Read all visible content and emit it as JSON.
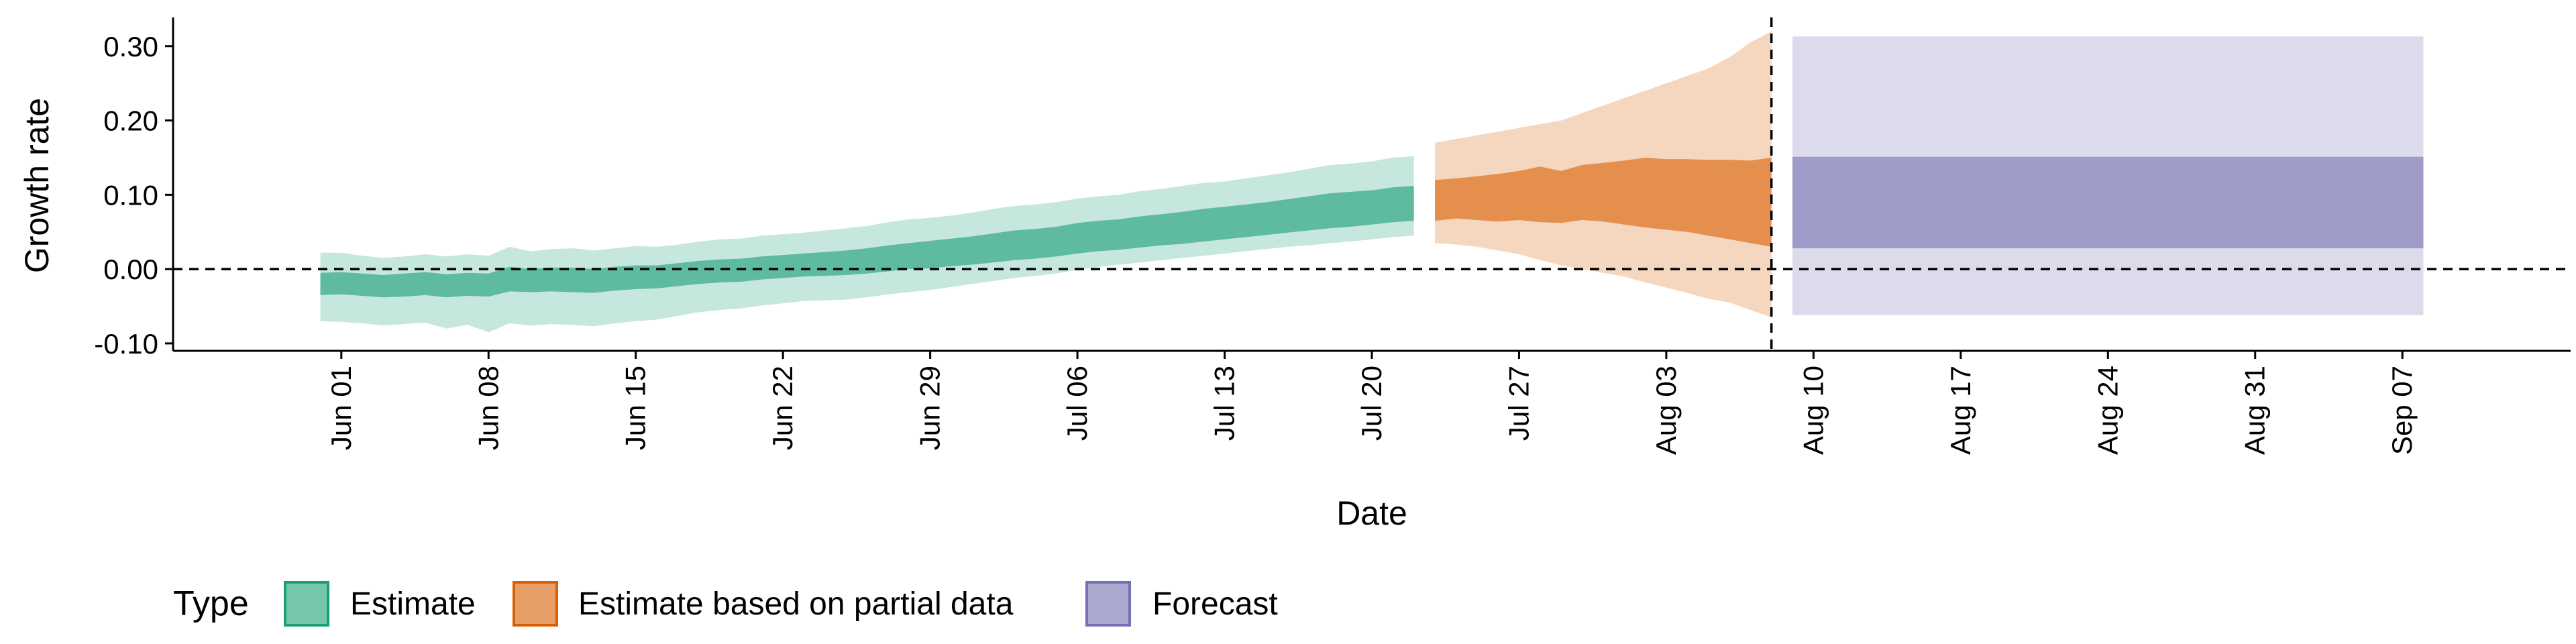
{
  "chart_data": {
    "type": "area",
    "title": "",
    "xlabel": "Date",
    "ylabel": "Growth rate",
    "x_type": "date",
    "xlim": [
      "2021-05-24",
      "2021-09-15"
    ],
    "ylim": [
      -0.11,
      0.335
    ],
    "yticks": [
      -0.1,
      0.0,
      0.1,
      0.2,
      0.3
    ],
    "ytick_labels": [
      "-0.10",
      "0.00",
      "0.10",
      "0.20",
      "0.30"
    ],
    "xticks": [
      {
        "date": "2021-06-01",
        "label": "Jun 01"
      },
      {
        "date": "2021-06-08",
        "label": "Jun 08"
      },
      {
        "date": "2021-06-15",
        "label": "Jun 15"
      },
      {
        "date": "2021-06-22",
        "label": "Jun 22"
      },
      {
        "date": "2021-06-29",
        "label": "Jun 29"
      },
      {
        "date": "2021-07-06",
        "label": "Jul 06"
      },
      {
        "date": "2021-07-13",
        "label": "Jul 13"
      },
      {
        "date": "2021-07-20",
        "label": "Jul 20"
      },
      {
        "date": "2021-07-27",
        "label": "Jul 27"
      },
      {
        "date": "2021-08-03",
        "label": "Aug 03"
      },
      {
        "date": "2021-08-10",
        "label": "Aug 10"
      },
      {
        "date": "2021-08-17",
        "label": "Aug 17"
      },
      {
        "date": "2021-08-24",
        "label": "Aug 24"
      },
      {
        "date": "2021-08-31",
        "label": "Aug 31"
      },
      {
        "date": "2021-09-07",
        "label": "Sep 07"
      }
    ],
    "reference_lines": [
      {
        "axis": "y",
        "value": 0.0,
        "style": "dashed"
      },
      {
        "axis": "x",
        "value": "2021-08-08",
        "style": "dashed"
      }
    ],
    "legend": {
      "title": "Type",
      "position": "bottom-left"
    },
    "series": [
      {
        "name": "Estimate",
        "color": "#1b9e77",
        "dates": [
          "2021-05-31",
          "2021-06-01",
          "2021-06-02",
          "2021-06-03",
          "2021-06-04",
          "2021-06-05",
          "2021-06-06",
          "2021-06-07",
          "2021-06-08",
          "2021-06-09",
          "2021-06-10",
          "2021-06-11",
          "2021-06-12",
          "2021-06-13",
          "2021-06-14",
          "2021-06-15",
          "2021-06-16",
          "2021-06-17",
          "2021-06-18",
          "2021-06-19",
          "2021-06-20",
          "2021-06-21",
          "2021-06-22",
          "2021-06-23",
          "2021-06-24",
          "2021-06-25",
          "2021-06-26",
          "2021-06-27",
          "2021-06-28",
          "2021-06-29",
          "2021-06-30",
          "2021-07-01",
          "2021-07-02",
          "2021-07-03",
          "2021-07-04",
          "2021-07-05",
          "2021-07-06",
          "2021-07-07",
          "2021-07-08",
          "2021-07-09",
          "2021-07-10",
          "2021-07-11",
          "2021-07-12",
          "2021-07-13",
          "2021-07-14",
          "2021-07-15",
          "2021-07-16",
          "2021-07-17",
          "2021-07-18",
          "2021-07-19",
          "2021-07-20",
          "2021-07-21",
          "2021-07-22"
        ],
        "upper_90": [
          0.022,
          0.022,
          0.018,
          0.015,
          0.017,
          0.02,
          0.017,
          0.02,
          0.018,
          0.03,
          0.024,
          0.027,
          0.028,
          0.025,
          0.028,
          0.031,
          0.03,
          0.033,
          0.037,
          0.04,
          0.041,
          0.045,
          0.047,
          0.049,
          0.052,
          0.055,
          0.058,
          0.063,
          0.067,
          0.069,
          0.072,
          0.076,
          0.081,
          0.085,
          0.087,
          0.09,
          0.095,
          0.098,
          0.1,
          0.105,
          0.108,
          0.112,
          0.116,
          0.118,
          0.122,
          0.126,
          0.13,
          0.135,
          0.14,
          0.142,
          0.145,
          0.15,
          0.152
        ],
        "upper_50": [
          -0.005,
          -0.004,
          -0.006,
          -0.008,
          -0.006,
          -0.004,
          -0.007,
          -0.005,
          -0.006,
          0.003,
          0.0,
          0.002,
          0.002,
          0.0,
          0.003,
          0.005,
          0.005,
          0.008,
          0.011,
          0.013,
          0.014,
          0.017,
          0.019,
          0.021,
          0.023,
          0.025,
          0.028,
          0.032,
          0.035,
          0.038,
          0.041,
          0.044,
          0.048,
          0.052,
          0.054,
          0.057,
          0.062,
          0.065,
          0.067,
          0.071,
          0.074,
          0.077,
          0.081,
          0.084,
          0.087,
          0.09,
          0.094,
          0.098,
          0.102,
          0.104,
          0.106,
          0.11,
          0.112
        ],
        "lower_50": [
          -0.035,
          -0.034,
          -0.036,
          -0.038,
          -0.037,
          -0.035,
          -0.038,
          -0.036,
          -0.037,
          -0.03,
          -0.031,
          -0.03,
          -0.031,
          -0.032,
          -0.029,
          -0.027,
          -0.026,
          -0.023,
          -0.02,
          -0.018,
          -0.017,
          -0.014,
          -0.012,
          -0.01,
          -0.009,
          -0.008,
          -0.006,
          -0.003,
          0.0,
          0.001,
          0.004,
          0.006,
          0.009,
          0.012,
          0.014,
          0.017,
          0.021,
          0.024,
          0.026,
          0.029,
          0.032,
          0.034,
          0.037,
          0.04,
          0.043,
          0.046,
          0.049,
          0.052,
          0.055,
          0.057,
          0.06,
          0.063,
          0.065
        ],
        "lower_90": [
          -0.07,
          -0.071,
          -0.073,
          -0.076,
          -0.074,
          -0.072,
          -0.08,
          -0.075,
          -0.085,
          -0.073,
          -0.076,
          -0.074,
          -0.075,
          -0.077,
          -0.073,
          -0.07,
          -0.068,
          -0.063,
          -0.058,
          -0.055,
          -0.053,
          -0.049,
          -0.046,
          -0.043,
          -0.042,
          -0.041,
          -0.038,
          -0.034,
          -0.031,
          -0.028,
          -0.024,
          -0.02,
          -0.016,
          -0.012,
          -0.009,
          -0.006,
          -0.001,
          0.003,
          0.006,
          0.009,
          0.012,
          0.015,
          0.018,
          0.021,
          0.024,
          0.027,
          0.03,
          0.032,
          0.035,
          0.037,
          0.04,
          0.043,
          0.045
        ]
      },
      {
        "name": "Estimate based on partial data",
        "color": "#d95f02",
        "dates": [
          "2021-07-23",
          "2021-07-24",
          "2021-07-25",
          "2021-07-26",
          "2021-07-27",
          "2021-07-28",
          "2021-07-29",
          "2021-07-30",
          "2021-07-31",
          "2021-08-01",
          "2021-08-02",
          "2021-08-03",
          "2021-08-04",
          "2021-08-05",
          "2021-08-06",
          "2021-08-07",
          "2021-08-08"
        ],
        "upper_90": [
          0.17,
          0.175,
          0.18,
          0.185,
          0.19,
          0.195,
          0.2,
          0.21,
          0.22,
          0.23,
          0.24,
          0.25,
          0.26,
          0.27,
          0.285,
          0.305,
          0.32
        ],
        "upper_50": [
          0.12,
          0.122,
          0.125,
          0.128,
          0.132,
          0.138,
          0.132,
          0.14,
          0.143,
          0.146,
          0.15,
          0.148,
          0.148,
          0.147,
          0.147,
          0.146,
          0.15
        ],
        "lower_50": [
          0.065,
          0.068,
          0.066,
          0.064,
          0.066,
          0.063,
          0.062,
          0.066,
          0.064,
          0.06,
          0.056,
          0.053,
          0.05,
          0.045,
          0.04,
          0.035,
          0.03
        ],
        "lower_90": [
          0.035,
          0.033,
          0.03,
          0.025,
          0.02,
          0.012,
          0.005,
          0.0,
          -0.005,
          -0.01,
          -0.018,
          -0.025,
          -0.032,
          -0.04,
          -0.045,
          -0.055,
          -0.065
        ]
      },
      {
        "name": "Forecast",
        "color": "#7570b3",
        "dates": [
          "2021-08-09",
          "2021-09-08"
        ],
        "upper_90": [
          0.313,
          0.313
        ],
        "upper_50": [
          0.151,
          0.151
        ],
        "lower_50": [
          0.028,
          0.028
        ],
        "lower_90": [
          -0.062,
          -0.062
        ]
      }
    ]
  }
}
